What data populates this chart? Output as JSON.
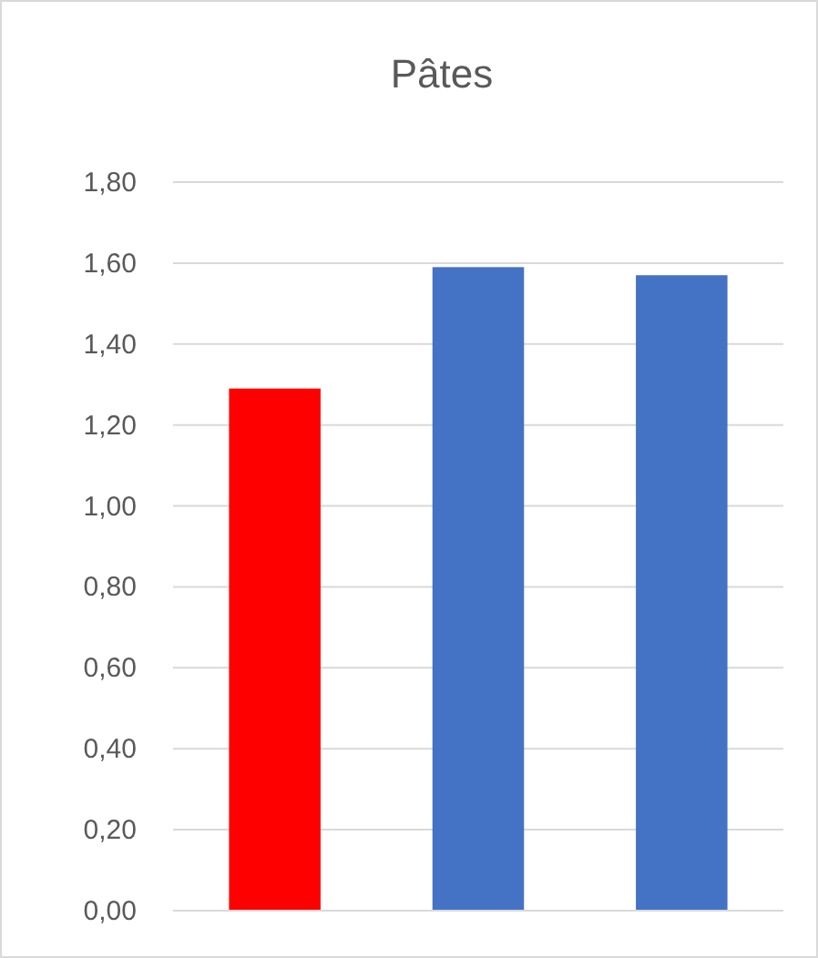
{
  "chart_data": {
    "type": "bar",
    "title": "Pâtes",
    "categories": [
      null,
      null,
      null
    ],
    "values": [
      1.29,
      1.59,
      1.57
    ],
    "colors": [
      "#ff0000",
      "#4472c4",
      "#4472c4"
    ],
    "ylim": [
      0,
      1.8
    ],
    "yticks": [
      {
        "value": 0,
        "label": "0,00"
      },
      {
        "value": 0.2,
        "label": "0,20"
      },
      {
        "value": 0.4,
        "label": "0,40"
      },
      {
        "value": 0.6,
        "label": "0,60"
      },
      {
        "value": 0.8,
        "label": "0,80"
      },
      {
        "value": 1,
        "label": "1,00"
      },
      {
        "value": 1.2,
        "label": "1,20"
      },
      {
        "value": 1.4,
        "label": "1,40"
      },
      {
        "value": 1.6,
        "label": "1,60"
      },
      {
        "value": 1.8,
        "label": "1,80"
      }
    ],
    "grid": "y"
  }
}
